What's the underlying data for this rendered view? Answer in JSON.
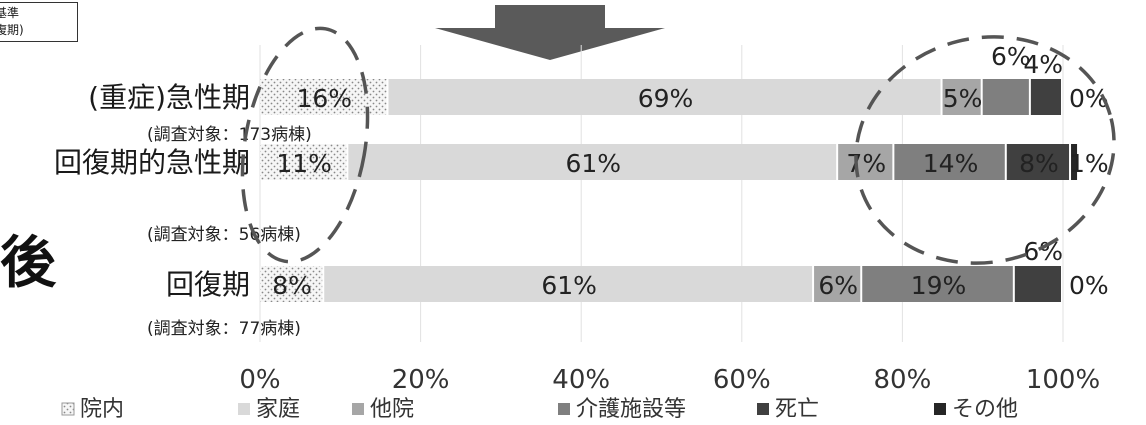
{
  "corner_label": {
    "line1": "基準",
    "line2": "復期)"
  },
  "side_char": "後",
  "chart_data": {
    "type": "bar",
    "orientation": "horizontal",
    "stacked": true,
    "percent": true,
    "title": "",
    "xlabel": "",
    "ylabel": "",
    "xlim": [
      0,
      100
    ],
    "x_ticks": [
      "0%",
      "20%",
      "40%",
      "60%",
      "80%",
      "100%"
    ],
    "categories": [
      "(重症)急性期",
      "回復期的急性期",
      "回復期"
    ],
    "category_notes": [
      "(調査対象：173病棟)",
      "(調査対象：56病棟)",
      "(調査対象：77病棟)"
    ],
    "series": [
      {
        "name": "院内",
        "values": [
          16,
          11,
          8
        ],
        "labels": [
          "16%",
          "11%",
          "8%"
        ],
        "color": "#f4f4f4",
        "pattern": "dots"
      },
      {
        "name": "家庭",
        "values": [
          69,
          61,
          61
        ],
        "labels": [
          "69%",
          "61%",
          "61%"
        ],
        "color": "#d9d9d9"
      },
      {
        "name": "他院",
        "values": [
          5,
          7,
          6
        ],
        "labels": [
          "5%",
          "7%",
          "6%"
        ],
        "color": "#a6a6a6"
      },
      {
        "name": "介護施設等",
        "values": [
          6,
          14,
          19
        ],
        "labels": [
          "6%",
          "14%",
          "19%"
        ],
        "color": "#7f7f7f"
      },
      {
        "name": "死亡",
        "values": [
          4,
          8,
          6
        ],
        "labels": [
          "4%",
          "8%",
          "6%"
        ],
        "color": "#404040"
      },
      {
        "name": "その他",
        "values": [
          0,
          1,
          0
        ],
        "labels": [
          "0%",
          "1%",
          "0%"
        ],
        "color": "#262626"
      }
    ],
    "grid": true,
    "legend_position": "bottom"
  }
}
